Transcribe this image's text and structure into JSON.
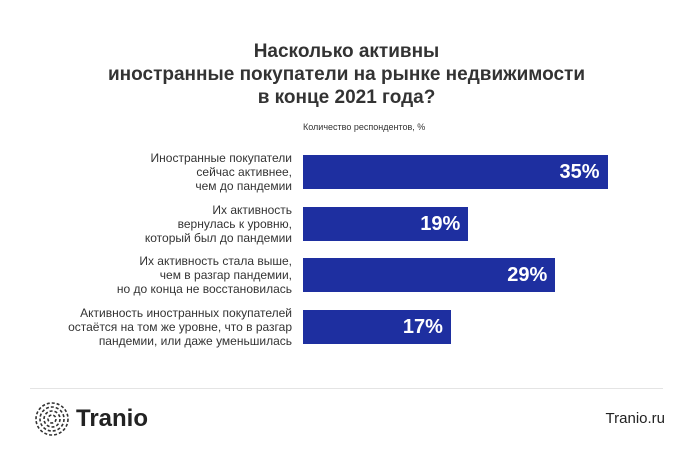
{
  "chart_data": {
    "type": "bar",
    "title": "Насколько активны\nиностранные покупатели на рынке недвижимости\nв конце 2021 года?",
    "subtitle": "Количество респондентов, %",
    "categories": [
      "Иностранные покупатели\nсейчас активнее,\nчем до пандемии",
      "Их активность\nвернулась к уровню,\nкоторый был до пандемии",
      "Их активность стала выше,\nчем в разгар пандемии,\nно до конца не восстановилась",
      "Активность иностранных покупателей\nостаётся на том же уровне, что в разгар\nпандемии, или даже уменьшилась"
    ],
    "values": [
      35,
      19,
      29,
      17
    ],
    "value_labels": [
      "35%",
      "19%",
      "29%",
      "17%"
    ],
    "color": "#1e2fa0"
  },
  "footer": {
    "brand": "Tranio",
    "site": "Tranio.ru"
  }
}
